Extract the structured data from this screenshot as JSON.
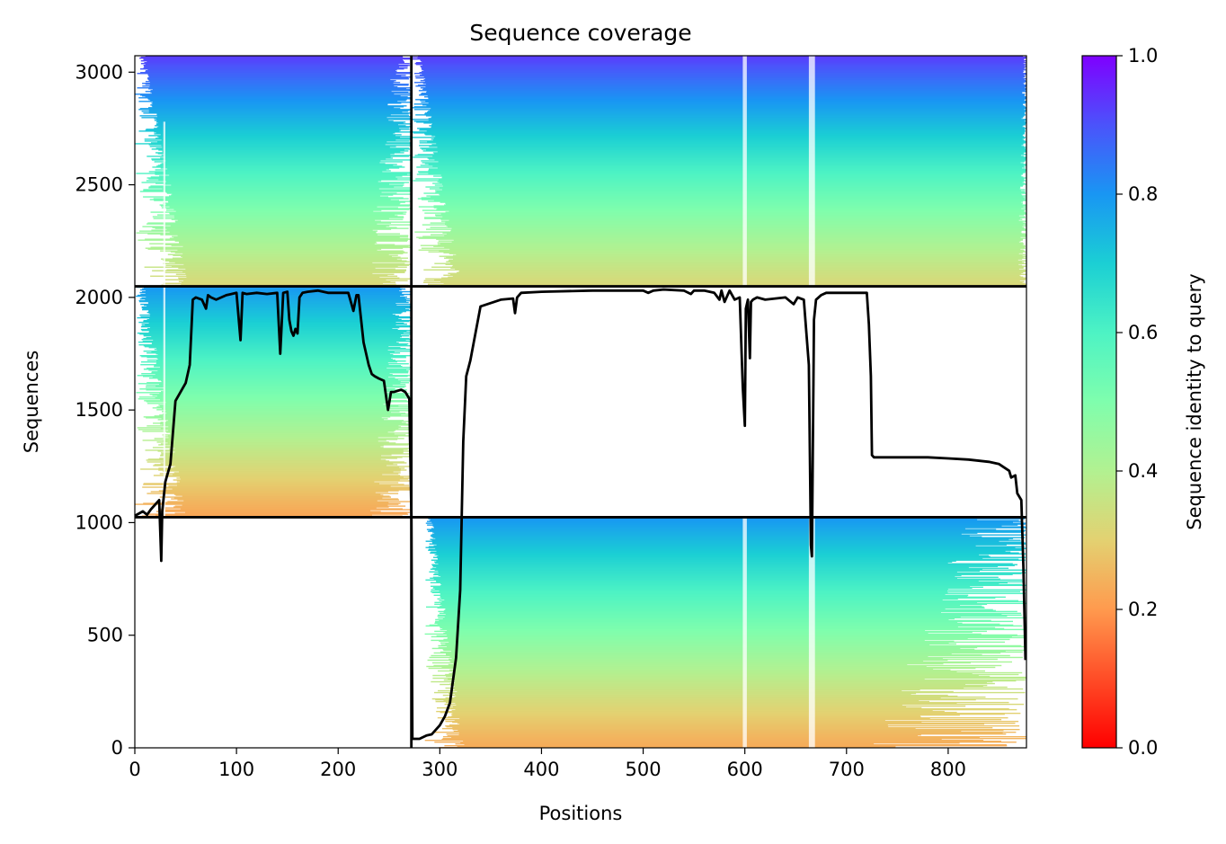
{
  "chart_data": {
    "type": "heatmap",
    "title": "Sequence coverage",
    "xlabel": "Positions",
    "ylabel": "Sequences",
    "colorbar_label": "Sequence identity to query",
    "colormap": "rainbow_r",
    "xlim": [
      0,
      877
    ],
    "ylim": [
      0,
      3073
    ],
    "x_ticks": [
      0,
      100,
      200,
      300,
      400,
      500,
      600,
      700,
      800
    ],
    "y_ticks": [
      0,
      500,
      1000,
      1500,
      2000,
      2500,
      3000
    ],
    "colorbar_range": [
      0,
      1
    ],
    "colorbar_ticks": [
      "0.0",
      "0.2",
      "0.4",
      "0.6",
      "0.8",
      "1.0"
    ],
    "grid": false,
    "chain_boundaries": {
      "x": [
        272
      ],
      "y": [
        1024,
        2049
      ]
    },
    "blocks": [
      {
        "rows": [
          2049,
          3073
        ],
        "cols": [
          0,
          272
        ],
        "identity_top": 0.93,
        "identity_bottom": 0.32,
        "first_col_min": 0,
        "first_col_max": 55,
        "last_col_min": 225,
        "last_col_max": 272
      },
      {
        "rows": [
          2049,
          3073
        ],
        "cols": [
          272,
          877
        ],
        "identity_top": 0.93,
        "identity_bottom": 0.32,
        "first_col_min": 272,
        "first_col_max": 322,
        "last_col_min": 868,
        "last_col_max": 877
      },
      {
        "rows": [
          1024,
          2049
        ],
        "cols": [
          0,
          272
        ],
        "identity_top": 0.8,
        "identity_bottom": 0.22,
        "first_col_min": 0,
        "first_col_max": 52,
        "last_col_min": 230,
        "last_col_max": 272
      },
      {
        "rows": [
          0,
          1024
        ],
        "cols": [
          272,
          877
        ],
        "identity_top": 0.8,
        "identity_bottom": 0.23,
        "first_col_min": 285,
        "first_col_max": 325,
        "last_col_min": 722,
        "last_col_max": 877
      }
    ],
    "coverage_gaps_x": [
      {
        "x": [
          598,
          602
        ],
        "rows": [
          0,
          3073
        ]
      },
      {
        "x": [
          663,
          669
        ],
        "rows": [
          0,
          3073
        ]
      },
      {
        "x": [
          28,
          30
        ],
        "rows": [
          1024,
          2780
        ]
      }
    ],
    "coverage_line": {
      "name": "coverage",
      "x": [
        0,
        8,
        12,
        16,
        20,
        24,
        26,
        27,
        30,
        35,
        40,
        45,
        50,
        54,
        57,
        60,
        66,
        70,
        72,
        75,
        80,
        90,
        100,
        104,
        106,
        110,
        120,
        130,
        140,
        143,
        146,
        150,
        152,
        154,
        156,
        158,
        160,
        162,
        165,
        170,
        180,
        190,
        200,
        210,
        215,
        218,
        220,
        225,
        230,
        233,
        236,
        240,
        245,
        249,
        252,
        255,
        262,
        266,
        270,
        272,
        273,
        276,
        280,
        287,
        292,
        300,
        305,
        310,
        316,
        320,
        323,
        326,
        330,
        340,
        360,
        372,
        374,
        376,
        380,
        400,
        450,
        500,
        505,
        510,
        520,
        540,
        547,
        550,
        560,
        570,
        575,
        577,
        580,
        585,
        590,
        595,
        598,
        600,
        601,
        603,
        605,
        606,
        608,
        612,
        620,
        640,
        648,
        652,
        658,
        663,
        665,
        666,
        668,
        670,
        675,
        680,
        690,
        700,
        720,
        722,
        724,
        725,
        727,
        740,
        760,
        780,
        800,
        820,
        840,
        850,
        860,
        862,
        866,
        868,
        872,
        874,
        876
      ],
      "y": [
        1030,
        1050,
        1035,
        1060,
        1080,
        1100,
        830,
        1050,
        1180,
        1260,
        1540,
        1580,
        1620,
        1700,
        1990,
        2000,
        1990,
        1950,
        2010,
        2000,
        1990,
        2010,
        2020,
        1810,
        2020,
        2015,
        2020,
        2015,
        2020,
        1750,
        2020,
        2025,
        1900,
        1850,
        1830,
        1860,
        1840,
        2000,
        2020,
        2025,
        2030,
        2020,
        2020,
        2020,
        1940,
        2010,
        2010,
        1800,
        1700,
        1660,
        1650,
        1640,
        1630,
        1500,
        1580,
        1580,
        1590,
        1580,
        1550,
        1030,
        40,
        40,
        40,
        55,
        60,
        100,
        140,
        200,
        400,
        700,
        1360,
        1650,
        1720,
        1960,
        1990,
        1995,
        1930,
        2000,
        2020,
        2025,
        2030,
        2030,
        2020,
        2030,
        2035,
        2030,
        2015,
        2030,
        2030,
        2020,
        1990,
        2030,
        1980,
        2030,
        1990,
        2000,
        1600,
        1430,
        1950,
        1990,
        1730,
        1980,
        1990,
        2000,
        1990,
        2000,
        1970,
        2000,
        1990,
        1700,
        900,
        850,
        1900,
        1990,
        2010,
        2020,
        2020,
        2020,
        2020,
        1880,
        1650,
        1300,
        1290,
        1290,
        1290,
        1290,
        1285,
        1280,
        1270,
        1260,
        1230,
        1200,
        1210,
        1130,
        1100,
        800,
        390
      ]
    }
  }
}
